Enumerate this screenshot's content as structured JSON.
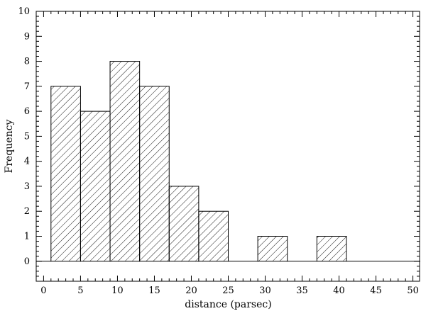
{
  "chart_data": {
    "type": "bar",
    "title": "",
    "xlabel": "distance (parsec)",
    "ylabel": "Frequency",
    "xlim": [
      -1,
      51
    ],
    "ylim": [
      -0.8,
      10
    ],
    "x_ticks": [
      0,
      5,
      10,
      15,
      20,
      25,
      30,
      35,
      40,
      45,
      50
    ],
    "y_ticks": [
      0,
      1,
      2,
      3,
      4,
      5,
      6,
      7,
      8,
      9,
      10
    ],
    "bin_width": 4,
    "bins": [
      {
        "start": 1,
        "end": 5,
        "value": 7
      },
      {
        "start": 5,
        "end": 9,
        "value": 6
      },
      {
        "start": 9,
        "end": 13,
        "value": 8
      },
      {
        "start": 13,
        "end": 17,
        "value": 7
      },
      {
        "start": 17,
        "end": 21,
        "value": 3
      },
      {
        "start": 21,
        "end": 25,
        "value": 2
      },
      {
        "start": 25,
        "end": 29,
        "value": 0
      },
      {
        "start": 29,
        "end": 33,
        "value": 1
      },
      {
        "start": 33,
        "end": 37,
        "value": 0
      },
      {
        "start": 37,
        "end": 41,
        "value": 1
      },
      {
        "start": 41,
        "end": 51,
        "value": 0
      }
    ],
    "fill_pattern": "diagonal-hatch",
    "grid": false,
    "legend": "none",
    "colors": {
      "stroke": "#000000",
      "background": "#ffffff"
    }
  }
}
